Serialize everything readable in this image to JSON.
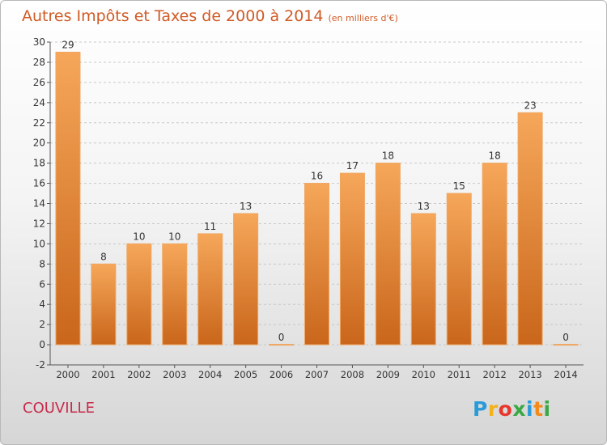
{
  "header": {
    "title": "Autres Impôts et Taxes de 2000 à 2014",
    "unit": "(en milliers d'€)"
  },
  "footer": {
    "commune": "COUVILLE",
    "logo_letters": [
      "P",
      "r",
      "o",
      "x",
      "i",
      "t",
      "i"
    ],
    "logo_colors": [
      "#2a9bd8",
      "#f2b21c",
      "#e8362c",
      "#3aa843",
      "#2a9bd8",
      "#f28a1c",
      "#3aa843"
    ]
  },
  "colors": {
    "bar_top": "#f6a75a",
    "bar_bottom": "#c9661b",
    "bar_edge": "#f0a660",
    "grid": "#c8c8c8",
    "axis": "#555555",
    "title": "#d05a25",
    "commune": "#c92a4a"
  },
  "chart_data": {
    "type": "bar",
    "title": "Autres Impôts et Taxes de 2000 à 2014",
    "subtitle": "(en milliers d'€)",
    "categories": [
      "2000",
      "2001",
      "2002",
      "2003",
      "2004",
      "2005",
      "2006",
      "2007",
      "2008",
      "2009",
      "2010",
      "2011",
      "2012",
      "2013",
      "2014"
    ],
    "values": [
      29,
      8,
      10,
      10,
      11,
      13,
      0,
      16,
      17,
      18,
      13,
      15,
      18,
      23,
      0
    ],
    "data_labels": [
      "29",
      "8",
      "10",
      "10",
      "11",
      "13",
      "0",
      "16",
      "17",
      "18",
      "13",
      "15",
      "18",
      "23",
      "0"
    ],
    "ylim": [
      -2,
      30
    ],
    "yticks": [
      -2,
      0,
      2,
      4,
      6,
      8,
      10,
      12,
      14,
      16,
      18,
      20,
      22,
      24,
      26,
      28,
      30
    ],
    "ytick_labels": [
      "-2",
      "0",
      "2",
      "4",
      "6",
      "8",
      "10",
      "12",
      "14",
      "16",
      "18",
      "20",
      "22",
      "24",
      "26",
      "28",
      "30"
    ],
    "xlabel": "",
    "ylabel": "",
    "grid": "horizontal dashed",
    "legend": "none"
  }
}
